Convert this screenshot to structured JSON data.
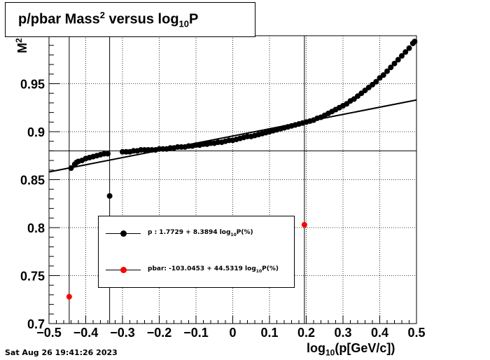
{
  "title": {
    "main": "p/pbar Mass",
    "sup": "2",
    "mid": " versus log",
    "sub": "10",
    "end": "P"
  },
  "datestamp": "Sat Aug 26 19:41:26 2023",
  "xlabel": {
    "pre": "log",
    "sub": "10",
    "post": "(p[GeV/c])"
  },
  "ylabel": {
    "main": "M",
    "sup": "2"
  },
  "legend": {
    "p": {
      "pre": "p   : 1.7729 + 8.3894 log",
      "sub": "10",
      "post": "P(%)"
    },
    "pbar": {
      "pre": "pbar: -103.0453 + 44.5319 log",
      "sub": "10",
      "post": "P(%)"
    }
  },
  "chart_data": {
    "type": "scatter",
    "xlim": [
      -0.5,
      0.5
    ],
    "ylim": [
      0.7,
      1.0
    ],
    "x_ticks": [
      -0.5,
      -0.4,
      -0.3,
      -0.2,
      -0.1,
      0,
      0.1,
      0.2,
      0.3,
      0.4,
      0.5
    ],
    "x_tick_labels": [
      "−0.5",
      "−0.4",
      "−0.3",
      "−0.2",
      "−0.1",
      "0",
      "0.1",
      "0.2",
      "0.3",
      "0.4",
      "0.5"
    ],
    "y_ticks": [
      0.7,
      0.75,
      0.8,
      0.85,
      0.9,
      0.95
    ],
    "y_tick_labels": [
      "0.7",
      "0.75",
      "0.8",
      "0.85",
      "0.9",
      "0.95"
    ],
    "grid": true,
    "colors": {
      "p": "#000000",
      "pbar": "#ff0000"
    },
    "vlines": [
      -0.445,
      -0.335,
      0.195
    ],
    "hline": 0.88,
    "fit_line": {
      "x": [
        -0.5,
        0.5
      ],
      "y": [
        0.858,
        0.933
      ]
    },
    "series": [
      {
        "key": "p",
        "x": [
          -0.44,
          -0.43,
          -0.425,
          -0.42,
          -0.41,
          -0.4,
          -0.39,
          -0.38,
          -0.37,
          -0.36,
          -0.35,
          -0.34,
          -0.335,
          -0.3,
          -0.29,
          -0.28,
          -0.27,
          -0.26,
          -0.25,
          -0.24,
          -0.23,
          -0.22,
          -0.21,
          -0.2,
          -0.19,
          -0.18,
          -0.17,
          -0.16,
          -0.15,
          -0.14,
          -0.13,
          -0.12,
          -0.11,
          -0.1,
          -0.09,
          -0.08,
          -0.07,
          -0.06,
          -0.05,
          -0.04,
          -0.03,
          -0.02,
          -0.01,
          0,
          0.01,
          0.02,
          0.03,
          0.04,
          0.05,
          0.06,
          0.07,
          0.08,
          0.09,
          0.1,
          0.11,
          0.12,
          0.13,
          0.14,
          0.15,
          0.16,
          0.17,
          0.18,
          0.19,
          0.2,
          0.21,
          0.22,
          0.23,
          0.24,
          0.25,
          0.26,
          0.27,
          0.28,
          0.29,
          0.3,
          0.31,
          0.32,
          0.33,
          0.34,
          0.35,
          0.36,
          0.37,
          0.38,
          0.39,
          0.4,
          0.41,
          0.42,
          0.43,
          0.44,
          0.45,
          0.46,
          0.47,
          0.48,
          0.49,
          0.495
        ],
        "y": [
          0.862,
          0.866,
          0.868,
          0.869,
          0.87,
          0.872,
          0.873,
          0.874,
          0.875,
          0.876,
          0.877,
          0.877,
          0.833,
          0.879,
          0.879,
          0.879,
          0.88,
          0.88,
          0.881,
          0.881,
          0.881,
          0.881,
          0.881,
          0.882,
          0.882,
          0.882,
          0.883,
          0.883,
          0.884,
          0.884,
          0.884,
          0.885,
          0.885,
          0.886,
          0.886,
          0.887,
          0.887,
          0.888,
          0.888,
          0.889,
          0.889,
          0.89,
          0.891,
          0.891,
          0.892,
          0.893,
          0.894,
          0.895,
          0.895,
          0.896,
          0.897,
          0.898,
          0.899,
          0.9,
          0.901,
          0.902,
          0.903,
          0.904,
          0.905,
          0.906,
          0.907,
          0.908,
          0.909,
          0.91,
          0.911,
          0.912,
          0.914,
          0.915,
          0.917,
          0.919,
          0.921,
          0.923,
          0.925,
          0.927,
          0.929,
          0.932,
          0.934,
          0.937,
          0.94,
          0.943,
          0.946,
          0.949,
          0.952,
          0.956,
          0.959,
          0.963,
          0.967,
          0.971,
          0.975,
          0.979,
          0.983,
          0.987,
          0.992,
          0.994
        ]
      },
      {
        "key": "pbar",
        "x": [
          -0.445,
          0.195
        ],
        "y": [
          0.728,
          0.803
        ]
      }
    ]
  }
}
